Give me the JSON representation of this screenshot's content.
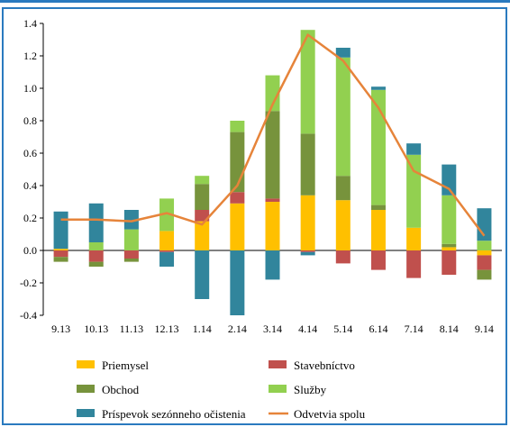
{
  "chart_data": {
    "type": "bar",
    "stacked": true,
    "categories": [
      "9.13",
      "10.13",
      "11.13",
      "12.13",
      "1.14",
      "2.14",
      "3.14",
      "4.14",
      "5.14",
      "6.14",
      "7.14",
      "8.14",
      "9.14"
    ],
    "ylim": [
      -0.4,
      1.4
    ],
    "yticks": [
      "1.4",
      "1.2",
      "1.0",
      "0.8",
      "0.6",
      "0.4",
      "0.2",
      "0.0",
      "-0.2",
      "-0.4"
    ],
    "ytick_values": [
      1.4,
      1.2,
      1.0,
      0.8,
      0.6,
      0.4,
      0.2,
      0.0,
      -0.2,
      -0.4
    ],
    "grid": false,
    "legend_position": "bottom",
    "series": [
      {
        "name": "Priemysel",
        "color": "#ffc000",
        "values": [
          0.01,
          0.0,
          0.0,
          0.12,
          0.18,
          0.29,
          0.3,
          0.34,
          0.31,
          0.25,
          0.14,
          0.02,
          -0.03
        ]
      },
      {
        "name": "Stavebníctvo",
        "color": "#c0504d",
        "values": [
          -0.04,
          -0.07,
          -0.05,
          -0.01,
          0.07,
          0.07,
          0.02,
          -0.01,
          -0.08,
          -0.12,
          -0.17,
          -0.15,
          -0.09
        ]
      },
      {
        "name": "Obchod",
        "color": "#77933c",
        "values": [
          -0.03,
          -0.03,
          -0.02,
          0.0,
          0.16,
          0.37,
          0.54,
          0.38,
          0.15,
          0.03,
          0.0,
          0.02,
          -0.06
        ]
      },
      {
        "name": "Služby",
        "color": "#92d050",
        "values": [
          0.0,
          0.05,
          0.13,
          0.2,
          0.05,
          0.07,
          0.22,
          0.64,
          0.73,
          0.71,
          0.45,
          0.3,
          0.06
        ]
      },
      {
        "name": "Príspevok sezónneho očistenia",
        "color": "#31859c",
        "values": [
          0.23,
          0.24,
          0.12,
          -0.09,
          -0.3,
          -0.4,
          -0.18,
          -0.02,
          0.06,
          0.02,
          0.07,
          0.19,
          0.2
        ]
      }
    ],
    "line": {
      "name": "Odvetvia spolu",
      "color": "#e6843a",
      "values": [
        0.19,
        0.19,
        0.18,
        0.23,
        0.16,
        0.4,
        0.9,
        1.33,
        1.17,
        0.88,
        0.49,
        0.38,
        0.09
      ]
    }
  }
}
